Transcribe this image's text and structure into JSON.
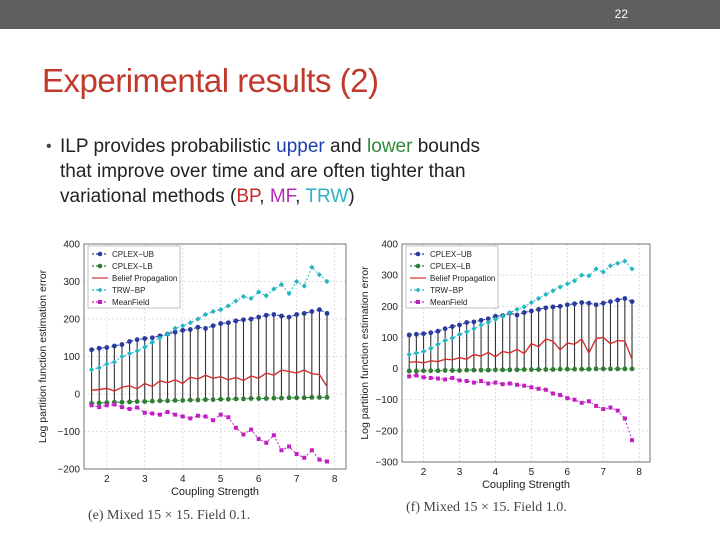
{
  "slide": {
    "number": "22",
    "title": "Experimental results (2)",
    "bullet": {
      "line1_a": "ILP provides probabilistic ",
      "upper": "upper",
      "and": " and ",
      "lower": "lower",
      "line1_b": " bounds",
      "line2": "that improve over time and are often tighter than",
      "line3_a": "variational methods (",
      "bp": "BP",
      "comma1": ", ",
      "mf": "MF",
      "comma2": ", ",
      "trw": "TRW",
      "close": ")"
    }
  },
  "colors": {
    "ub": "#2a3a9e",
    "lb": "#2e7d32",
    "bp": "#d32f2f",
    "trw": "#26b5c4",
    "mf": "#c21ec2",
    "bar": "#333333"
  },
  "chart_data": [
    {
      "type": "line",
      "caption": "(e) Mixed 15 × 15. Field 0.1.",
      "xlabel": "Coupling Strength",
      "ylabel": "Log partition function estimation error",
      "xlim": [
        1.4,
        8.3
      ],
      "ylim": [
        -200,
        400
      ],
      "xticks": [
        2,
        3,
        4,
        5,
        6,
        7,
        8
      ],
      "yticks": [
        -200,
        -100,
        0,
        100,
        200,
        300,
        400
      ],
      "ytick_labels": [
        "−200",
        "−100",
        "0",
        "100",
        "200",
        "300",
        "400"
      ],
      "legend": [
        "CPLEX−UB",
        "CPLEX−LB",
        "Belief Propagation",
        "TRW−BP",
        "MeanField"
      ],
      "legend_position": "top-left",
      "x": [
        1.6,
        1.8,
        2.0,
        2.2,
        2.4,
        2.6,
        2.8,
        3.0,
        3.2,
        3.4,
        3.6,
        3.8,
        4.0,
        4.2,
        4.4,
        4.6,
        4.8,
        5.0,
        5.2,
        5.4,
        5.6,
        5.8,
        6.0,
        6.2,
        6.4,
        6.6,
        6.8,
        7.0,
        7.2,
        7.4,
        7.6,
        7.8
      ],
      "series": [
        {
          "name": "CPLEX−UB",
          "values": [
            118,
            122,
            124,
            128,
            132,
            140,
            145,
            148,
            150,
            155,
            160,
            165,
            170,
            172,
            178,
            175,
            182,
            188,
            190,
            195,
            198,
            200,
            205,
            210,
            212,
            208,
            205,
            212,
            215,
            220,
            225,
            215
          ]
        },
        {
          "name": "CPLEX−LB",
          "values": [
            -25,
            -24,
            -23,
            -22,
            -22,
            -21,
            -20,
            -20,
            -19,
            -18,
            -18,
            -17,
            -17,
            -16,
            -16,
            -15,
            -15,
            -14,
            -14,
            -13,
            -13,
            -12,
            -12,
            -12,
            -11,
            -11,
            -10,
            -10,
            -10,
            -9,
            -9,
            -9
          ]
        },
        {
          "name": "Belief Propagation",
          "values": [
            10,
            12,
            15,
            8,
            18,
            22,
            14,
            28,
            20,
            35,
            30,
            38,
            28,
            45,
            40,
            50,
            42,
            46,
            38,
            44,
            36,
            48,
            42,
            56,
            50,
            64,
            60,
            56,
            64,
            54,
            52,
            20
          ]
        },
        {
          "name": "TRW−BP",
          "values": [
            65,
            70,
            80,
            85,
            100,
            108,
            115,
            125,
            138,
            150,
            160,
            175,
            182,
            190,
            200,
            212,
            220,
            225,
            235,
            248,
            260,
            255,
            272,
            262,
            280,
            292,
            268,
            300,
            288,
            338,
            318,
            300
          ]
        },
        {
          "name": "MeanField",
          "values": [
            -30,
            -35,
            -30,
            -28,
            -35,
            -40,
            -36,
            -50,
            -52,
            -55,
            -48,
            -55,
            -60,
            -65,
            -58,
            -60,
            -70,
            -55,
            -62,
            -90,
            -108,
            -95,
            -120,
            -130,
            -110,
            -150,
            -140,
            -160,
            -170,
            -150,
            -175,
            -180
          ]
        }
      ]
    },
    {
      "type": "line",
      "caption": "(f) Mixed 15 × 15. Field 1.0.",
      "xlabel": "Coupling Strength",
      "ylabel": "Log partition function estimation error",
      "xlim": [
        1.4,
        8.3
      ],
      "ylim": [
        -300,
        400
      ],
      "xticks": [
        2,
        3,
        4,
        5,
        6,
        7,
        8
      ],
      "yticks": [
        -300,
        -200,
        -100,
        0,
        100,
        200,
        300,
        400
      ],
      "ytick_labels": [
        "−300",
        "−200",
        "−100",
        "0",
        "100",
        "200",
        "300",
        "400"
      ],
      "legend": [
        "CPLEX−UB",
        "CPLEX−LB",
        "Belief Propagation",
        "TRW−BP",
        "MeanField"
      ],
      "legend_position": "top-left",
      "x": [
        1.6,
        1.8,
        2.0,
        2.2,
        2.4,
        2.6,
        2.8,
        3.0,
        3.2,
        3.4,
        3.6,
        3.8,
        4.0,
        4.2,
        4.4,
        4.6,
        4.8,
        5.0,
        5.2,
        5.4,
        5.6,
        5.8,
        6.0,
        6.2,
        6.4,
        6.6,
        6.8,
        7.0,
        7.2,
        7.4,
        7.6,
        7.8
      ],
      "series": [
        {
          "name": "CPLEX−UB",
          "values": [
            108,
            110,
            112,
            115,
            120,
            128,
            135,
            140,
            148,
            150,
            155,
            160,
            168,
            170,
            178,
            172,
            180,
            185,
            190,
            195,
            198,
            200,
            205,
            208,
            212,
            210,
            205,
            210,
            215,
            220,
            225,
            215
          ]
        },
        {
          "name": "CPLEX−LB",
          "values": [
            -8,
            -8,
            -7,
            -7,
            -7,
            -6,
            -6,
            -6,
            -5,
            -5,
            -5,
            -5,
            -4,
            -4,
            -4,
            -4,
            -3,
            -3,
            -3,
            -3,
            -3,
            -2,
            -2,
            -2,
            -2,
            -2,
            -1,
            -1,
            -1,
            -1,
            -1,
            -1
          ]
        },
        {
          "name": "Belief Propagation",
          "values": [
            20,
            22,
            18,
            25,
            22,
            30,
            28,
            35,
            30,
            45,
            40,
            52,
            38,
            55,
            50,
            62,
            48,
            80,
            70,
            95,
            88,
            60,
            82,
            78,
            95,
            50,
            96,
            100,
            80,
            90,
            88,
            30
          ]
        },
        {
          "name": "TRW−BP",
          "values": [
            45,
            50,
            55,
            65,
            78,
            90,
            98,
            110,
            118,
            128,
            140,
            148,
            158,
            168,
            178,
            190,
            198,
            212,
            225,
            238,
            250,
            262,
            272,
            282,
            300,
            298,
            320,
            310,
            330,
            338,
            345,
            320
          ]
        },
        {
          "name": "MeanField",
          "values": [
            -25,
            -22,
            -28,
            -30,
            -32,
            -35,
            -30,
            -38,
            -40,
            -45,
            -40,
            -48,
            -45,
            -50,
            -48,
            -52,
            -55,
            -60,
            -65,
            -68,
            -80,
            -85,
            -95,
            -100,
            -110,
            -105,
            -120,
            -130,
            -125,
            -135,
            -160,
            -230
          ]
        }
      ]
    }
  ]
}
